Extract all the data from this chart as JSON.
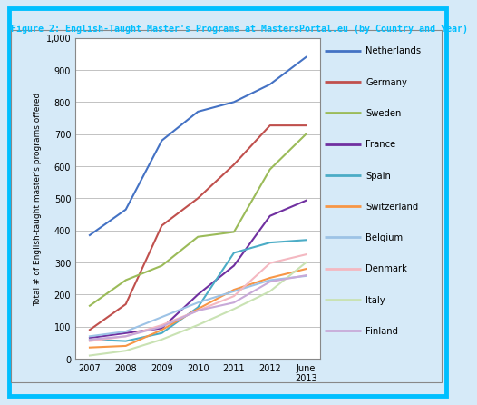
{
  "title": "Figure 2: English-Taught Master's Programs at MastersPortal.eu (by Country and Year)",
  "ylabel": "Total # of English-taught master's programs offered",
  "x_labels": [
    "2007",
    "2008",
    "2009",
    "2010",
    "2011",
    "2012",
    "June\n2013"
  ],
  "x_values": [
    0,
    1,
    2,
    3,
    4,
    5,
    6
  ],
  "series": [
    {
      "name": "Netherlands",
      "color": "#4472C4",
      "values": [
        385,
        465,
        680,
        770,
        800,
        855,
        940
      ]
    },
    {
      "name": "Germany",
      "color": "#C0504D",
      "values": [
        90,
        170,
        415,
        500,
        605,
        727,
        727
      ]
    },
    {
      "name": "Sweden",
      "color": "#9BBB59",
      "values": [
        165,
        245,
        290,
        380,
        395,
        590,
        700
      ]
    },
    {
      "name": "France",
      "color": "#7030A0",
      "values": [
        65,
        80,
        95,
        200,
        290,
        445,
        493
      ]
    },
    {
      "name": "Spain",
      "color": "#4BACC6",
      "values": [
        60,
        55,
        80,
        160,
        330,
        362,
        370
      ]
    },
    {
      "name": "Switzerland",
      "color": "#F79646",
      "values": [
        35,
        40,
        90,
        155,
        215,
        252,
        280
      ]
    },
    {
      "name": "Belgium",
      "color": "#9DC3E6",
      "values": [
        70,
        85,
        130,
        175,
        210,
        245,
        258
      ]
    },
    {
      "name": "Denmark",
      "color": "#F4B8C1",
      "values": [
        55,
        70,
        105,
        150,
        195,
        298,
        325
      ]
    },
    {
      "name": "Italy",
      "color": "#C9E2B3",
      "values": [
        10,
        25,
        60,
        105,
        155,
        210,
        300
      ]
    },
    {
      "name": "Finland",
      "color": "#C8A9D8",
      "values": [
        60,
        70,
        100,
        150,
        175,
        240,
        260
      ]
    }
  ],
  "bg_color": "#FFFFFF",
  "outer_bg": "#D6EAF8",
  "border_color": "#00BFFF",
  "title_color": "#00BFFF",
  "grid_color": "#AAAAAA",
  "line_width": 1.5
}
